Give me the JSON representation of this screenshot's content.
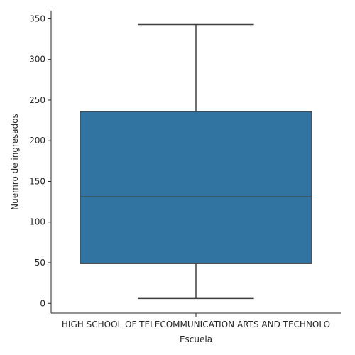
{
  "chart_data": {
    "type": "box",
    "title": "",
    "xlabel": "Escuela",
    "ylabel": "Nuemro de ingresados",
    "categories": [
      "HIGH SCHOOL OF TELECOMMUNICATION ARTS AND TECHNOLO"
    ],
    "boxes": [
      {
        "category": "HIGH SCHOOL OF TELECOMMUNICATION ARTS AND TECHNOLO",
        "whisker_low": 6,
        "q1": 49,
        "median": 131,
        "q3": 236,
        "whisker_high": 343
      }
    ],
    "ylim": [
      -12,
      360
    ],
    "yticks": [
      0,
      50,
      100,
      150,
      200,
      250,
      300,
      350
    ],
    "grid": false,
    "legend": "none",
    "box_color": "#3274a1",
    "line_color": "#3f3f3f"
  }
}
